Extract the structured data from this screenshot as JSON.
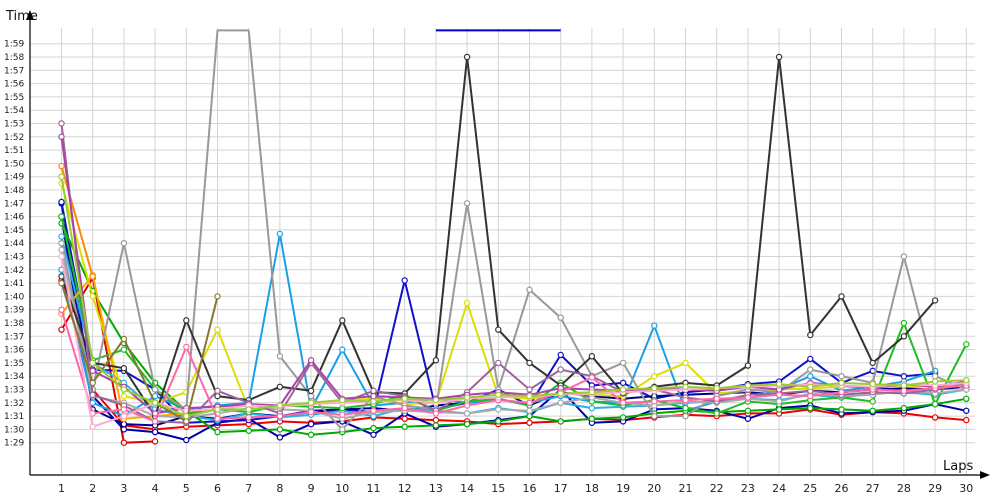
{
  "chart_data": {
    "type": "line",
    "ylabel": "Time",
    "xlabel": "Laps",
    "x": [
      1,
      2,
      3,
      4,
      5,
      6,
      7,
      8,
      9,
      10,
      11,
      12,
      13,
      14,
      15,
      16,
      17,
      18,
      19,
      20,
      21,
      22,
      23,
      24,
      25,
      26,
      27,
      28,
      29,
      30
    ],
    "xlim": [
      1,
      30
    ],
    "ylim": [
      88,
      120
    ],
    "y_tick_labels": [
      "1:29",
      "1:30",
      "1:31",
      "1:32",
      "1:33",
      "1:34",
      "1:35",
      "1:36",
      "1:37",
      "1:38",
      "1:39",
      "1:40",
      "1:41",
      "1:42",
      "1:43",
      "1:44",
      "1:45",
      "1:46",
      "1:47",
      "1:48",
      "1:49",
      "1:50",
      "1:51",
      "1:52",
      "1:53",
      "1:54",
      "1:55",
      "1:56",
      "1:57",
      "1:58",
      "1:59"
    ],
    "grid": true,
    "legend": "none",
    "series": [
      {
        "color": "#dd0000",
        "values": [
          97.5,
          101.4,
          89.0,
          89.1,
          null,
          null,
          null,
          null,
          null,
          null,
          null,
          null,
          null,
          null,
          null,
          null,
          null,
          null,
          null,
          null,
          null,
          null,
          null,
          null,
          null,
          null,
          null,
          null,
          null,
          null
        ]
      },
      {
        "color": "#ee0000",
        "values": [
          101.2,
          93.0,
          90.3,
          90.0,
          90.2,
          90.3,
          90.4,
          90.6,
          90.5,
          90.6,
          90.9,
          90.8,
          90.7,
          90.6,
          90.4,
          90.5,
          90.6,
          90.8,
          90.7,
          90.9,
          91.1,
          91.0,
          91.2,
          91.2,
          91.5,
          91.1,
          91.3,
          91.2,
          90.9,
          90.7
        ]
      },
      {
        "color": "#0000aa",
        "values": [
          107.0,
          92.5,
          90.0,
          89.8,
          89.2,
          90.5,
          90.8,
          89.4,
          90.4,
          90.6,
          89.6,
          91.2,
          90.2,
          90.4,
          90.7,
          91.0,
          93.0,
          90.5,
          90.6,
          91.5,
          91.6,
          91.4,
          90.8,
          91.6,
          91.8,
          91.2,
          91.3,
          91.4,
          91.9,
          91.4
        ]
      },
      {
        "color": "#1010cc",
        "values": [
          107.1,
          94.5,
          94.4,
          93.0,
          90.5,
          90.6,
          90.7,
          91.0,
          91.4,
          91.5,
          91.3,
          101.2,
          91.5,
          92.0,
          93.0,
          91.8,
          95.6,
          93.3,
          93.5,
          92.3,
          92.8,
          93.0,
          93.4,
          93.6,
          95.3,
          93.5,
          94.4,
          94.0,
          94.2,
          null
        ]
      },
      {
        "color": "#000088",
        "values": [
          106.0,
          91.5,
          90.4,
          90.3,
          91.0,
          90.8,
          91.2,
          91.0,
          91.3,
          91.5,
          91.6,
          91.4,
          91.8,
          92.0,
          92.3,
          91.8,
          92.8,
          92.5,
          92.3,
          92.5,
          92.6,
          92.7,
          92.8,
          92.6,
          92.9,
          92.8,
          93.0,
          93.1,
          93.0,
          93.2
        ]
      },
      {
        "color": "#1a9fe8",
        "values": [
          102.0,
          92.0,
          91.0,
          92.5,
          91.5,
          91.8,
          92.0,
          104.7,
          91.5,
          96.0,
          91.8,
          92.0,
          92.3,
          92.0,
          92.2,
          92.0,
          92.5,
          92.1,
          92.0,
          97.8,
          91.4,
          92.1,
          92.3,
          93.0,
          94.0,
          92.9,
          93.2,
          93.6,
          94.4,
          null
        ]
      },
      {
        "color": "#2ab0e0",
        "values": [
          104.5,
          95.0,
          93.5,
          91.5,
          91.0,
          90.7,
          91.2,
          90.9,
          91.1,
          91.4,
          91.0,
          91.6,
          91.4,
          91.2,
          91.6,
          91.3,
          92.0,
          91.6,
          91.7,
          91.8,
          92.0,
          92.1,
          92.3,
          92.2,
          92.6,
          92.4,
          92.7,
          92.8,
          92.6,
          93.0
        ]
      },
      {
        "color": "#00aa00",
        "values": [
          105.5,
          100.4,
          96.5,
          93.5,
          91.4,
          89.8,
          89.9,
          90.0,
          89.6,
          89.8,
          90.1,
          90.2,
          90.3,
          90.4,
          90.6,
          91.0,
          90.6,
          90.8,
          90.9,
          91.2,
          91.4,
          91.3,
          91.4,
          91.5,
          91.6,
          91.5,
          91.4,
          91.6,
          91.9,
          92.3
        ]
      },
      {
        "color": "#22bb22",
        "values": [
          106.0,
          95.2,
          96.0,
          93.0,
          91.2,
          91.5,
          91.3,
          91.8,
          91.7,
          91.6,
          91.9,
          92.6,
          91.4,
          92.1,
          92.3,
          91.8,
          93.5,
          92.1,
          91.8,
          92.2,
          91.6,
          91.2,
          92.1,
          91.9,
          92.2,
          92.4,
          92.1,
          98.0,
          91.9,
          96.4
        ]
      },
      {
        "color": "#dddd00",
        "values": [
          108.5,
          100.0,
          92.5,
          92.0,
          92.8,
          97.5,
          91.5,
          91.7,
          92.0,
          92.2,
          92.3,
          91.9,
          92.0,
          99.5,
          92.5,
          92.3,
          92.7,
          92.6,
          92.5,
          94.0,
          95.0,
          92.7,
          92.9,
          93.0,
          93.1,
          93.2,
          93.2,
          93.3,
          93.2,
          93.4
        ]
      },
      {
        "color": "#ffaa00",
        "values": [
          98.7,
          101.6,
          90.8,
          91.0,
          91.2,
          null,
          null,
          null,
          null,
          null,
          null,
          null,
          null,
          null,
          null,
          null,
          null,
          null,
          null,
          null,
          null,
          null,
          null,
          null,
          null,
          null,
          null,
          null,
          null,
          null
        ]
      },
      {
        "color": "#ff8800",
        "values": [
          109.8,
          101.5,
          null,
          null,
          null,
          null,
          null,
          null,
          null,
          null,
          null,
          null,
          null,
          null,
          null,
          null,
          null,
          null,
          null,
          null,
          null,
          null,
          null,
          null,
          null,
          null,
          null,
          null,
          null,
          null
        ]
      },
      {
        "color": "#999999",
        "values": [
          104.0,
          93.0,
          104.0,
          93.0,
          91.5,
          120.0,
          120.0,
          95.5,
          92.5,
          90.0,
          92.5,
          91.8,
          91.5,
          107.0,
          93.0,
          100.5,
          98.4,
          94.0,
          95.0,
          91.0,
          91.0,
          92.5,
          93.0,
          92.8,
          94.5,
          94.0,
          93.5,
          103.0,
          94.0,
          93.0
        ]
      },
      {
        "color": "#aaaaaa",
        "values": [
          103.5,
          92.5,
          92.0,
          91.0,
          90.9,
          91.2,
          91.6,
          91.5,
          91.4,
          90.8,
          91.3,
          91.4,
          91.3,
          91.2,
          91.5,
          91.4,
          92.0,
          92.4,
          92.0,
          91.8,
          92.1,
          92.0,
          92.3,
          92.1,
          92.7,
          92.5,
          92.6,
          92.9,
          92.7,
          93.0
        ]
      },
      {
        "color": "#333333",
        "values": [
          101.5,
          95.0,
          94.6,
          91.0,
          98.2,
          92.5,
          92.2,
          93.2,
          92.9,
          98.2,
          92.8,
          92.7,
          95.2,
          118.0,
          97.5,
          95.0,
          93.3,
          95.5,
          92.7,
          93.2,
          93.5,
          93.3,
          94.8,
          118.0,
          97.1,
          100.0,
          95.0,
          97.0,
          99.7,
          null
        ]
      },
      {
        "color": "#996699",
        "values": [
          113.0,
          92.6,
          91.8,
          90.6,
          90.5,
          92.9,
          92.0,
          91.2,
          95.0,
          92.0,
          92.9,
          92.5,
          91.4,
          92.8,
          95.0,
          93.0,
          94.5,
          94.0,
          92.8,
          93.0,
          92.4,
          92.1,
          92.6,
          92.7,
          92.9,
          92.6,
          92.8,
          92.7,
          93.0,
          93.4
        ]
      },
      {
        "color": "#aa44aa",
        "values": [
          112.0,
          94.4,
          93.2,
          91.2,
          91.6,
          91.7,
          91.9,
          91.8,
          95.2,
          92.3,
          92.5,
          92.4,
          92.3,
          92.6,
          92.8,
          92.6,
          93.1,
          93.0,
          92.9,
          93.1,
          93.0,
          92.9,
          93.2,
          93.0,
          93.5,
          93.3,
          93.1,
          93.4,
          93.2,
          93.6
        ]
      },
      {
        "color": "#ff66aa",
        "values": [
          99.0,
          91.2,
          91.5,
          90.6,
          96.2,
          90.8,
          90.9,
          91.0,
          91.3,
          91.1,
          91.4,
          91.6,
          91.2,
          91.8,
          92.2,
          92.0,
          92.8,
          93.9,
          92.0,
          92.1,
          92.2,
          92.3,
          92.4,
          92.6,
          92.5,
          92.8,
          93.0,
          92.9,
          93.1,
          93.3
        ]
      },
      {
        "color": "#ffaacc",
        "values": [
          103.0,
          90.2,
          91.0,
          92.0,
          91.4,
          91.5,
          91.8,
          91.7,
          91.9,
          92.0,
          92.1,
          92.2,
          92.0,
          92.3,
          92.4,
          92.5,
          92.6,
          92.7,
          92.8,
          92.9,
          93.0,
          93.1,
          93.2,
          93.3,
          93.4,
          93.3,
          93.2,
          93.4,
          93.3,
          93.5
        ]
      },
      {
        "color": "#887733",
        "values": [
          101.0,
          93.5,
          96.8,
          92.0,
          90.6,
          100.0,
          null,
          null,
          null,
          null,
          null,
          null,
          null,
          null,
          null,
          null,
          null,
          null,
          null,
          null,
          null,
          null,
          null,
          null,
          null,
          null,
          null,
          null,
          null,
          null
        ]
      },
      {
        "color": "#99cc33",
        "values": [
          109.0,
          95.0,
          93.0,
          92.0,
          91.0,
          91.5,
          91.5,
          91.8,
          92.0,
          92.2,
          92.1,
          92.3,
          92.2,
          92.4,
          92.6,
          92.5,
          92.7,
          92.8,
          93.0,
          93.1,
          93.2,
          93.1,
          93.3,
          93.4,
          93.2,
          93.5,
          93.4,
          93.3,
          93.6,
          93.7
        ]
      },
      {
        "color": "#0000cc",
        "values": [
          null,
          null,
          null,
          null,
          null,
          null,
          null,
          null,
          null,
          null,
          null,
          null,
          120.0,
          120.0,
          120.0,
          120.0,
          120.0,
          null,
          null,
          null,
          null,
          null,
          null,
          null,
          null,
          null,
          null,
          null,
          null,
          null
        ]
      }
    ]
  }
}
